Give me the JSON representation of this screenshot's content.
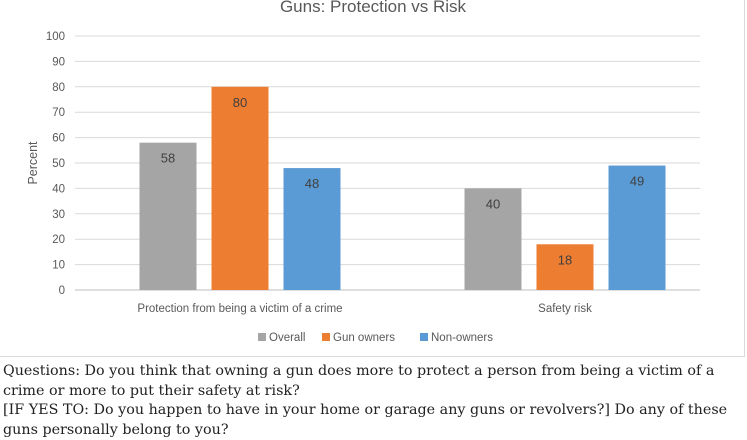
{
  "chart_data": {
    "type": "bar",
    "title": "Guns:  Protection vs Risk",
    "ylabel": "Percent",
    "xlabel": "",
    "ylim": [
      0,
      100
    ],
    "yticks": [
      0,
      10,
      20,
      30,
      40,
      50,
      60,
      70,
      80,
      90,
      100
    ],
    "grid": true,
    "legend_position": "bottom",
    "categories": [
      "Protection from being a victim of a crime",
      "Safety risk"
    ],
    "series": [
      {
        "name": "Overall",
        "color": "#a5a5a5",
        "values": [
          58,
          40
        ]
      },
      {
        "name": "Gun owners",
        "color": "#ed7d31",
        "values": [
          80,
          18
        ]
      },
      {
        "name": "Non-owners",
        "color": "#5b9bd5",
        "values": [
          48,
          49
        ]
      }
    ]
  },
  "notes": {
    "line1": "Questions: Do you think that owning a gun does more to protect a person from being a victim of a crime or more to put their safety at risk?",
    "line2": "[IF YES TO: Do you happen to have in your home or garage any guns or revolvers?] Do any of these guns personally belong to you?"
  }
}
